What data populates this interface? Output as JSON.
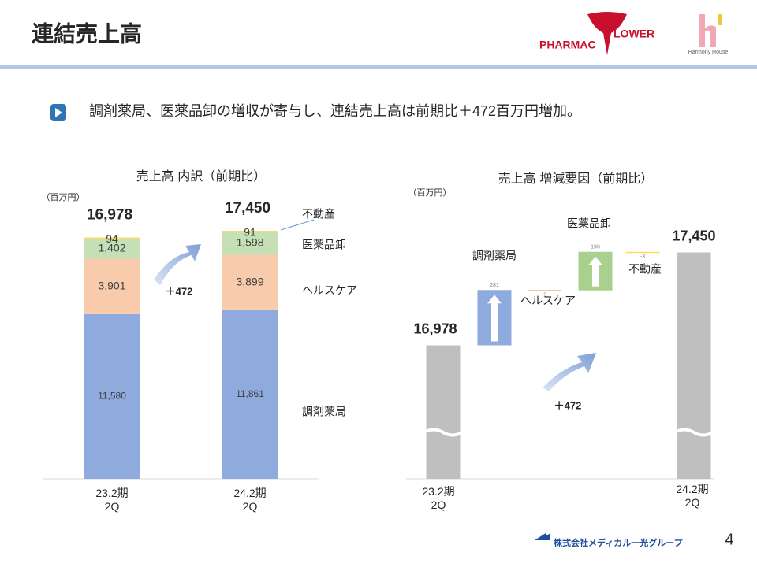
{
  "header": {
    "title": "連結売上高",
    "logos": {
      "pharmacy_left": "PHARMAC",
      "pharmacy_right": "LOWER",
      "harmony": "Harmony House"
    }
  },
  "bullet": "調剤薬局、医薬品卸の増収が寄与し、連結売上高は前期比＋472百万円増加。",
  "chart_data": [
    {
      "type": "stacked_bar",
      "title": "売上高 内訳（前期比）",
      "unit": "（百万円）",
      "categories": [
        "23.2期\n2Q",
        "24.2期\n2Q"
      ],
      "series": [
        {
          "name": "調剤薬局",
          "color": "#8faadc",
          "values": [
            11580,
            11861
          ],
          "value_labels": [
            "11,580",
            "11,861"
          ]
        },
        {
          "name": "ヘルスケア",
          "color": "#f8cbad",
          "values": [
            3901,
            3899
          ],
          "value_labels": [
            "3,901",
            "3,899"
          ]
        },
        {
          "name": "医薬品卸",
          "color": "#c5e0b4",
          "values": [
            1402,
            1598
          ],
          "value_labels": [
            "1,402",
            "1,598"
          ]
        },
        {
          "name": "不動産",
          "color": "#ffd966",
          "values": [
            94,
            91
          ]
        }
      ],
      "totals": [
        16978,
        17450
      ],
      "total_labels": [
        "16,978",
        "17,450"
      ],
      "annotation": "＋472",
      "ylim": [
        0,
        18000
      ]
    },
    {
      "type": "waterfall",
      "title": "売上高 増減要因（前期比）",
      "unit": "（百万円）",
      "categories": [
        "23.2期\n2Q",
        "調剤薬局",
        "ヘルスケア",
        "医薬品卸",
        "不動産",
        "24.2期\n2Q"
      ],
      "values": [
        16978,
        281,
        -2,
        196,
        -3,
        17450
      ],
      "value_labels": [
        "16,978",
        "281",
        "-2",
        "196",
        "-3",
        "17,450"
      ],
      "measures": [
        "absolute",
        "relative",
        "relative",
        "relative",
        "relative",
        "absolute"
      ],
      "colors": [
        "#bfbfbf",
        "#8faadc",
        "#f4b183",
        "#a9d18e",
        "#ffd966",
        "#bfbfbf"
      ],
      "annotation": "＋472",
      "ylim": [
        16300,
        17500
      ],
      "axis_break": true
    }
  ],
  "footer": {
    "company": "株式会社メディカル一光グループ",
    "page": 4
  }
}
